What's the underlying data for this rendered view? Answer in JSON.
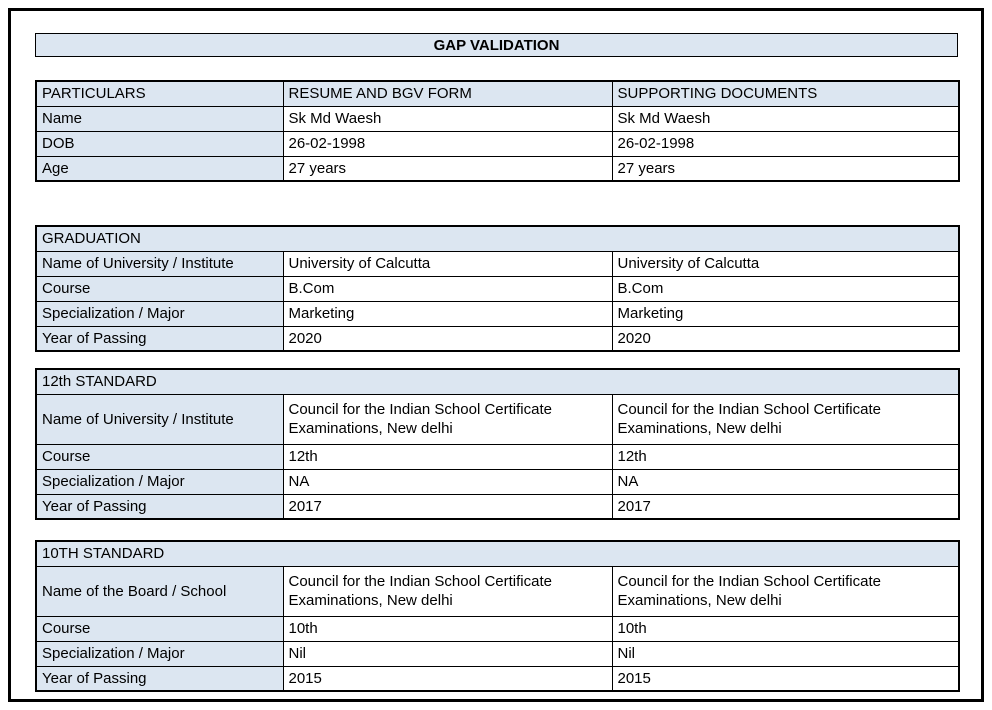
{
  "title": "GAP VALIDATION",
  "particulars": {
    "headers": [
      "PARTICULARS",
      "RESUME AND BGV FORM",
      "SUPPORTING DOCUMENTS"
    ],
    "rows": [
      [
        "Name",
        "Sk Md Waesh",
        "Sk Md Waesh"
      ],
      [
        "DOB",
        "26-02-1998",
        "26-02-1998"
      ],
      [
        "Age",
        "27 years",
        "27 years"
      ]
    ]
  },
  "sections": [
    {
      "title": "GRADUATION",
      "rows": [
        [
          "Name of University / Institute",
          "University of Calcutta",
          "University of Calcutta"
        ],
        [
          "Course",
          "B.Com",
          "B.Com"
        ],
        [
          "Specialization / Major",
          "Marketing",
          "Marketing"
        ],
        [
          "Year of Passing",
          "2020",
          "2020"
        ]
      ]
    },
    {
      "title": "12th STANDARD",
      "rows": [
        [
          "Name of University / Institute",
          "Council for the Indian School Certificate Examinations, New delhi",
          "Council for the Indian School Certificate Examinations, New delhi"
        ],
        [
          "Course",
          "12th",
          "12th"
        ],
        [
          "Specialization / Major",
          "NA",
          "NA"
        ],
        [
          "Year of Passing",
          "2017",
          "2017"
        ]
      ]
    },
    {
      "title": "10TH STANDARD",
      "rows": [
        [
          "Name of the Board / School",
          "Council for the Indian School Certificate Examinations, New delhi",
          "Council for the Indian School Certificate Examinations, New delhi"
        ],
        [
          "Course",
          "10th",
          "10th"
        ],
        [
          "Specialization / Major",
          "Nil",
          "Nil"
        ],
        [
          "Year of Passing",
          "2015",
          "2015"
        ]
      ]
    }
  ],
  "colors": {
    "fill": "#dce6f1",
    "border": "#000000",
    "text": "#000000"
  }
}
